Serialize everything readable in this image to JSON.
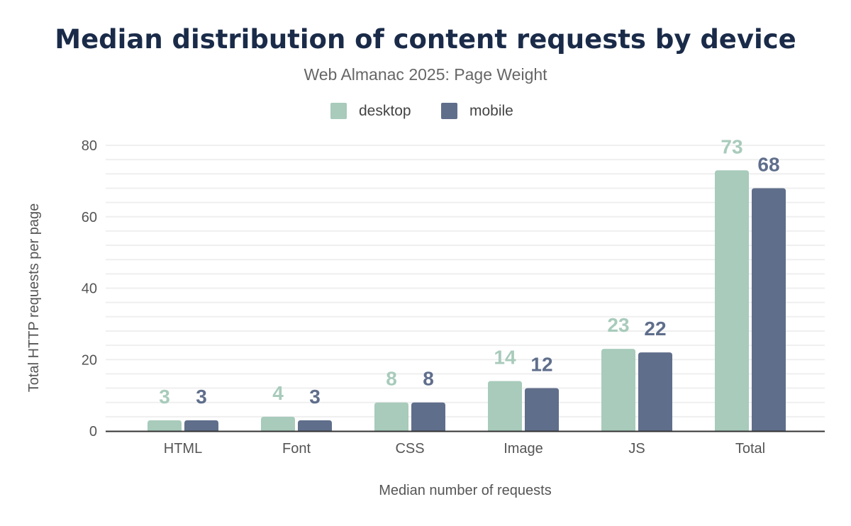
{
  "chart_data": {
    "type": "bar",
    "title": "Median distribution of content requests by device",
    "subtitle": "Web Almanac 2025: Page Weight",
    "xlabel": "Median number of requests",
    "ylabel": "Total HTTP requests per page",
    "categories": [
      "HTML",
      "Font",
      "CSS",
      "Image",
      "JS",
      "Total"
    ],
    "series": [
      {
        "name": "desktop",
        "color": "#a8cbbb",
        "values": [
          3,
          4,
          8,
          14,
          23,
          73
        ]
      },
      {
        "name": "mobile",
        "color": "#5f6e8b",
        "values": [
          3,
          3,
          8,
          12,
          22,
          68
        ]
      }
    ],
    "ylim": [
      0,
      80
    ],
    "yticks": [
      "0",
      "20",
      "40",
      "60",
      "80"
    ],
    "grid": true,
    "legend": "top-center"
  }
}
